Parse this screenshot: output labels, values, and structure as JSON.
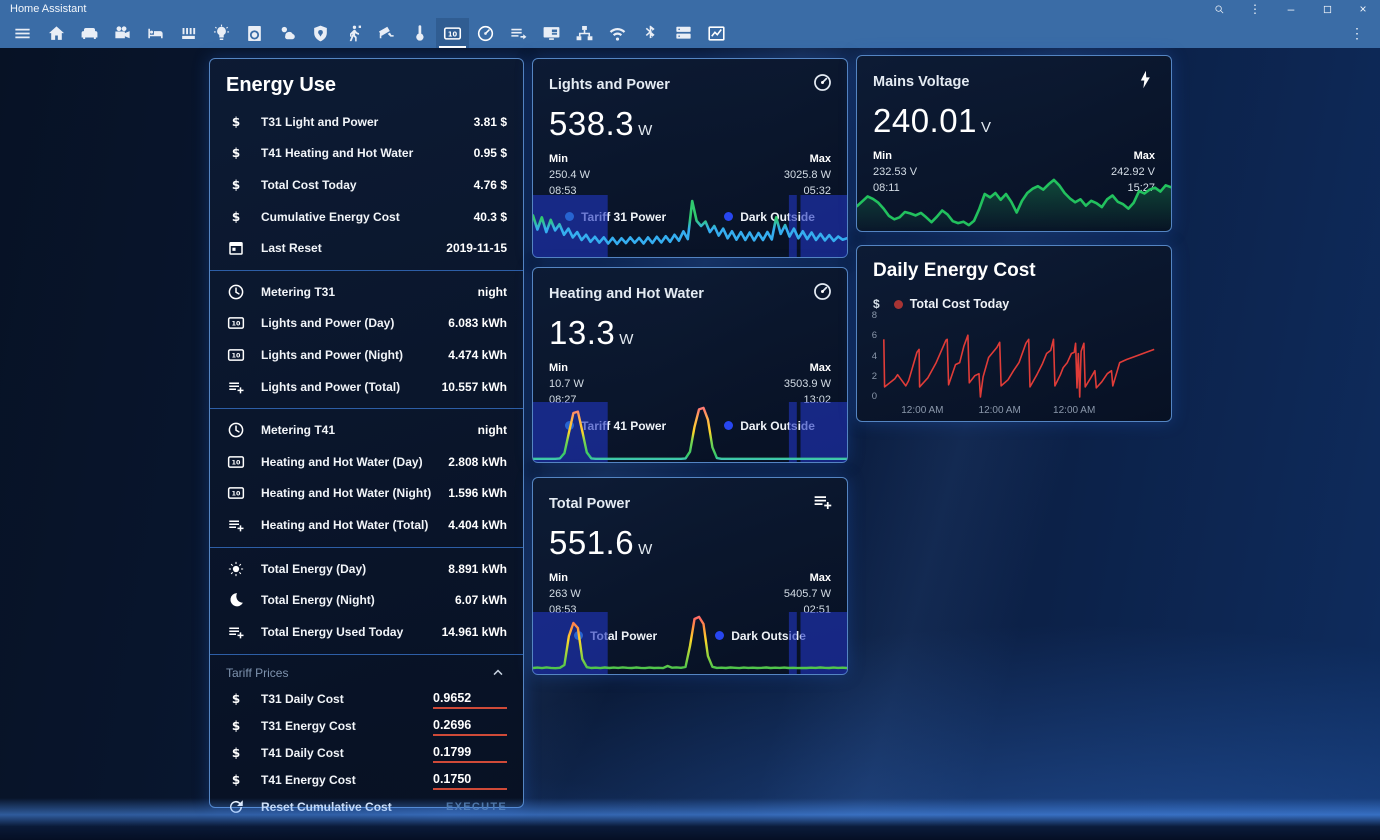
{
  "titlebar": {
    "app_title": "Home Assistant"
  },
  "tabbar": {
    "active": 13,
    "tabs": [
      {
        "name": "menu"
      },
      {
        "name": "home"
      },
      {
        "name": "sofa"
      },
      {
        "name": "projector"
      },
      {
        "name": "bed"
      },
      {
        "name": "radiator"
      },
      {
        "name": "lightbulb"
      },
      {
        "name": "washer"
      },
      {
        "name": "weather"
      },
      {
        "name": "shield"
      },
      {
        "name": "walk"
      },
      {
        "name": "cctv"
      },
      {
        "name": "thermometer"
      },
      {
        "name": "counter"
      },
      {
        "name": "gauge"
      },
      {
        "name": "playlist"
      },
      {
        "name": "monitor"
      },
      {
        "name": "sitemap"
      },
      {
        "name": "wifi"
      },
      {
        "name": "bluetooth"
      },
      {
        "name": "server"
      },
      {
        "name": "chart"
      }
    ]
  },
  "energy": {
    "title": "Energy Use",
    "sections": [
      {
        "rows": [
          {
            "icon": "currency-usd",
            "label": "T31 Light and Power",
            "value": "3.81 $"
          },
          {
            "icon": "currency-usd",
            "label": "T41 Heating and Hot Water",
            "value": "0.95 $"
          },
          {
            "icon": "currency-usd",
            "label": "Total Cost Today",
            "value": "4.76 $"
          },
          {
            "icon": "currency-usd",
            "label": "Cumulative Energy Cost",
            "value": "40.3 $"
          },
          {
            "icon": "calendar",
            "label": "Last Reset",
            "value": "2019-11-15"
          }
        ]
      },
      {
        "rows": [
          {
            "icon": "clock",
            "label": "Metering T31",
            "value": "night"
          },
          {
            "icon": "counter",
            "label": "Lights and Power (Day)",
            "value": "6.083 kWh"
          },
          {
            "icon": "counter",
            "label": "Lights and Power (Night)",
            "value": "4.474 kWh"
          },
          {
            "icon": "playlist-plus",
            "label": "Lights and Power (Total)",
            "value": "10.557 kWh"
          }
        ]
      },
      {
        "rows": [
          {
            "icon": "clock",
            "label": "Metering T41",
            "value": "night"
          },
          {
            "icon": "counter",
            "label": "Heating and Hot Water (Day)",
            "value": "2.808 kWh"
          },
          {
            "icon": "counter",
            "label": "Heating and Hot Water (Night)",
            "value": "1.596 kWh"
          },
          {
            "icon": "playlist-plus",
            "label": "Heating and Hot Water (Total)",
            "value": "4.404 kWh"
          }
        ]
      },
      {
        "rows": [
          {
            "icon": "sun",
            "label": "Total Energy (Day)",
            "value": "8.891 kWh"
          },
          {
            "icon": "moon",
            "label": "Total Energy (Night)",
            "value": "6.07 kWh"
          },
          {
            "icon": "playlist-plus",
            "label": "Total Energy Used Today",
            "value": "14.961 kWh"
          }
        ]
      }
    ],
    "tariff": {
      "header": "Tariff Prices",
      "inputs": [
        {
          "icon": "currency-usd",
          "label": "T31 Daily Cost",
          "value": "0.9652"
        },
        {
          "icon": "currency-usd",
          "label": "T31 Energy Cost",
          "value": "0.2696"
        },
        {
          "icon": "currency-usd",
          "label": "T41 Daily Cost",
          "value": "0.1799"
        },
        {
          "icon": "currency-usd",
          "label": "T41 Energy Cost",
          "value": "0.1750"
        }
      ],
      "action": {
        "icon": "refresh",
        "label": "Reset Cumulative Cost",
        "button": "EXECUTE"
      }
    }
  },
  "cards": {
    "lights": {
      "title": "Lights and Power",
      "icon": "gauge",
      "value": "538.3",
      "unit": "W",
      "min_label": "Min",
      "min_value": "250.4 W",
      "min_time": "08:53",
      "max_label": "Max",
      "max_value": "3025.8 W",
      "max_time": "05:32",
      "legend": [
        {
          "label": "Tariff 31 Power",
          "color": "#33b1ee"
        },
        {
          "label": "Dark Outside",
          "color": "#2746f0"
        }
      ]
    },
    "heating": {
      "title": "Heating and Hot Water",
      "icon": "gauge",
      "value": "13.3",
      "unit": "W",
      "min_label": "Min",
      "min_value": "10.7 W",
      "min_time": "08:27",
      "max_label": "Max",
      "max_value": "3503.9 W",
      "max_time": "13:02",
      "legend": [
        {
          "label": "Tariff 41 Power",
          "color": "#33b1ee"
        },
        {
          "label": "Dark Outside",
          "color": "#2746f0"
        }
      ]
    },
    "total": {
      "title": "Total Power",
      "icon": "playlist-plus",
      "value": "551.6",
      "unit": "W",
      "min_label": "Min",
      "min_value": "263 W",
      "min_time": "08:53",
      "max_label": "Max",
      "max_value": "5405.7 W",
      "max_time": "02:51",
      "legend": [
        {
          "label": "Total Power",
          "color": "#33b1ee"
        },
        {
          "label": "Dark Outside",
          "color": "#2746f0"
        }
      ]
    },
    "voltage": {
      "title": "Mains Voltage",
      "icon": "flash",
      "value": "240.01",
      "unit": "V",
      "min_label": "Min",
      "min_value": "232.53 V",
      "min_time": "08:11",
      "max_label": "Max",
      "max_value": "242.92 V",
      "max_time": "15:27"
    },
    "cost": {
      "title": "Daily Energy Cost",
      "ylabel": "$",
      "legend": [
        {
          "label": "Total Cost Today",
          "color": "#a83434"
        }
      ]
    }
  },
  "chart_data": [
    {
      "id": "lights",
      "type": "spark",
      "title": "Lights and Power history",
      "ylim": [
        0,
        3200
      ],
      "width": 2.6,
      "band_label": "Dark Outside",
      "band_color": "rgba(32,54,190,0.62)",
      "bands": [
        [
          0,
          0.238
        ],
        [
          0.815,
          0.84
        ],
        [
          0.852,
          1
        ]
      ],
      "stops": [
        [
          0,
          "#35aef0"
        ],
        [
          0.45,
          "#35aef0"
        ],
        [
          0.62,
          "#30c96e"
        ],
        [
          1,
          "#30c96e"
        ]
      ],
      "values": [
        2200,
        1400,
        2100,
        1250,
        1950,
        1350,
        1700,
        1100,
        1450,
        950,
        1250,
        800,
        1100,
        700,
        980,
        650,
        950,
        600,
        920,
        580,
        900,
        620,
        950,
        640,
        920,
        600,
        950,
        630,
        980,
        660,
        1020,
        700,
        1100,
        760,
        1300,
        850,
        3030,
        1900,
        1600,
        1850,
        1250,
        1600,
        1050,
        1450,
        900,
        1300,
        820,
        1250,
        800,
        1230,
        780,
        1200,
        800,
        1260,
        830,
        2100,
        1150,
        1650,
        1000,
        1450,
        900,
        1300,
        850,
        1230,
        800,
        1150,
        780,
        1080,
        750,
        1000,
        820,
        900
      ]
    },
    {
      "id": "heating",
      "type": "spark",
      "title": "Heating and Hot Water history",
      "ylim": [
        0,
        3700
      ],
      "width": 2.4,
      "band_label": "Dark Outside",
      "band_color": "rgba(32,54,190,0.62)",
      "bands": [
        [
          0,
          0.238
        ],
        [
          0.815,
          0.84
        ],
        [
          0.852,
          1
        ]
      ],
      "stops": [
        [
          0,
          "#49c8f0"
        ],
        [
          0.1,
          "#35c96a"
        ],
        [
          0.35,
          "#7ed64d"
        ],
        [
          0.5,
          "#ffd629"
        ],
        [
          0.72,
          "#ffb14e"
        ],
        [
          0.88,
          "#ff7a70"
        ],
        [
          1,
          "#ff8a8a"
        ]
      ],
      "values": [
        12,
        12,
        12,
        12,
        12,
        12,
        40,
        400,
        1800,
        3150,
        3250,
        1900,
        450,
        40,
        12,
        12,
        12,
        12,
        12,
        12,
        12,
        12,
        12,
        12,
        12,
        12,
        12,
        12,
        12,
        12,
        12,
        12,
        12,
        12,
        40,
        500,
        2200,
        3400,
        3504,
        2700,
        800,
        60,
        12,
        12,
        12,
        12,
        12,
        12,
        12,
        12,
        12,
        12,
        12,
        12,
        12,
        12,
        12,
        12,
        12,
        12,
        12,
        12,
        12,
        12,
        12,
        12,
        12,
        12,
        12,
        12,
        12
      ]
    },
    {
      "id": "total",
      "type": "spark",
      "title": "Total Power history",
      "ylim": [
        0,
        5600
      ],
      "width": 2.4,
      "band_label": "Dark Outside",
      "band_color": "rgba(32,54,190,0.62)",
      "bands": [
        [
          0,
          0.238
        ],
        [
          0.815,
          0.84
        ],
        [
          0.852,
          1
        ]
      ],
      "stops": [
        [
          0,
          "#2fc052"
        ],
        [
          0.35,
          "#a8d63a"
        ],
        [
          0.55,
          "#ffd629"
        ],
        [
          0.75,
          "#ff9440"
        ],
        [
          0.9,
          "#ff6a62"
        ],
        [
          1,
          "#ff8a8a"
        ]
      ],
      "values": [
        300,
        340,
        290,
        360,
        310,
        280,
        320,
        600,
        3500,
        4800,
        4300,
        1200,
        380,
        300,
        330,
        290,
        350,
        300,
        340,
        310,
        360,
        320,
        300,
        350,
        310,
        290,
        340,
        300,
        320,
        290,
        500,
        330,
        360,
        320,
        400,
        2500,
        5200,
        5406,
        4700,
        1500,
        420,
        310,
        330,
        300,
        350,
        320,
        290,
        340,
        310,
        330,
        300,
        320,
        350,
        300,
        330,
        310,
        340,
        300,
        320,
        290,
        310,
        300,
        330,
        310,
        350,
        320,
        300,
        340,
        310,
        330,
        300
      ]
    },
    {
      "id": "voltage",
      "type": "area",
      "title": "Mains Voltage history",
      "ylim": [
        232,
        246
      ],
      "width": 2.6,
      "stops": [
        [
          0,
          "#22c15e"
        ],
        [
          1,
          "#22c15e"
        ]
      ],
      "fill_stops": [
        [
          0,
          "rgba(28,170,85,0.02)"
        ],
        [
          1,
          "rgba(30,195,95,0.45)"
        ]
      ],
      "values": [
        236.5,
        237.5,
        238.5,
        238,
        237.2,
        236,
        234.5,
        233.8,
        234.2,
        235.3,
        235,
        234.6,
        235.1,
        234.2,
        233.2,
        234.3,
        235.6,
        234.8,
        233.4,
        233,
        233.3,
        232.6,
        233.5,
        236,
        239,
        238.3,
        239.2,
        237.8,
        239,
        237.4,
        235.2,
        237.6,
        239.2,
        240.1,
        240.6,
        239.9,
        241,
        241.9,
        240.8,
        239.2,
        238.1,
        237.3,
        237.9,
        236.6,
        237.6,
        237.1,
        236.3,
        237.9,
        238.7,
        237.4,
        236.9,
        236,
        237.2,
        239.6,
        239.1,
        239.9,
        240.3,
        239.5,
        240.8,
        240.4
      ]
    },
    {
      "id": "cost",
      "type": "line-xy",
      "title": "Daily Energy Cost",
      "series_name": "Total Cost Today",
      "color": "#e03c38",
      "ylim": [
        0,
        8
      ],
      "yticks": [
        8,
        6,
        4,
        2,
        0
      ],
      "xticks": [
        {
          "label": "12:00 AM",
          "x": 0.15
        },
        {
          "label": "12:00 AM",
          "x": 0.43
        },
        {
          "label": "12:00 AM",
          "x": 0.7
        }
      ],
      "points": [
        [
          0.01,
          5.7
        ],
        [
          0.013,
          1.0
        ],
        [
          0.05,
          1.8
        ],
        [
          0.06,
          2.2
        ],
        [
          0.09,
          1.1
        ],
        [
          0.1,
          1.6
        ],
        [
          0.13,
          4.4
        ],
        [
          0.138,
          4.7
        ],
        [
          0.14,
          1.0
        ],
        [
          0.17,
          1.9
        ],
        [
          0.2,
          3.4
        ],
        [
          0.235,
          5.6
        ],
        [
          0.24,
          5.7
        ],
        [
          0.245,
          1.2
        ],
        [
          0.27,
          3.2
        ],
        [
          0.285,
          3.4
        ],
        [
          0.3,
          5.0
        ],
        [
          0.315,
          6.1
        ],
        [
          0.32,
          1.4
        ],
        [
          0.34,
          2.1
        ],
        [
          0.355,
          2.3
        ],
        [
          0.36,
          0.0
        ],
        [
          0.37,
          2.0
        ],
        [
          0.39,
          3.9
        ],
        [
          0.42,
          4.9
        ],
        [
          0.43,
          5.4
        ],
        [
          0.435,
          1.1
        ],
        [
          0.46,
          1.7
        ],
        [
          0.48,
          2.6
        ],
        [
          0.5,
          3.4
        ],
        [
          0.525,
          5.3
        ],
        [
          0.535,
          5.7
        ],
        [
          0.54,
          1.0
        ],
        [
          0.565,
          2.2
        ],
        [
          0.585,
          3.3
        ],
        [
          0.6,
          4.3
        ],
        [
          0.615,
          4.6
        ],
        [
          0.625,
          5.7
        ],
        [
          0.63,
          1.1
        ],
        [
          0.65,
          2.2
        ],
        [
          0.66,
          2.9
        ],
        [
          0.675,
          3.4
        ],
        [
          0.69,
          4.3
        ],
        [
          0.7,
          4.4
        ],
        [
          0.705,
          5.3
        ],
        [
          0.71,
          0.9
        ],
        [
          0.715,
          4.3
        ],
        [
          0.72,
          0.0
        ],
        [
          0.725,
          4.5
        ],
        [
          0.735,
          5.3
        ],
        [
          0.74,
          1.0
        ],
        [
          0.76,
          1.9
        ],
        [
          0.775,
          2.6
        ],
        [
          0.78,
          0.9
        ],
        [
          0.8,
          1.5
        ],
        [
          0.82,
          2.3
        ],
        [
          0.835,
          2.6
        ],
        [
          0.84,
          1.1
        ],
        [
          0.865,
          3.4
        ],
        [
          0.89,
          3.7
        ],
        [
          0.92,
          4.0
        ],
        [
          0.96,
          4.4
        ],
        [
          0.99,
          4.7
        ]
      ]
    }
  ]
}
